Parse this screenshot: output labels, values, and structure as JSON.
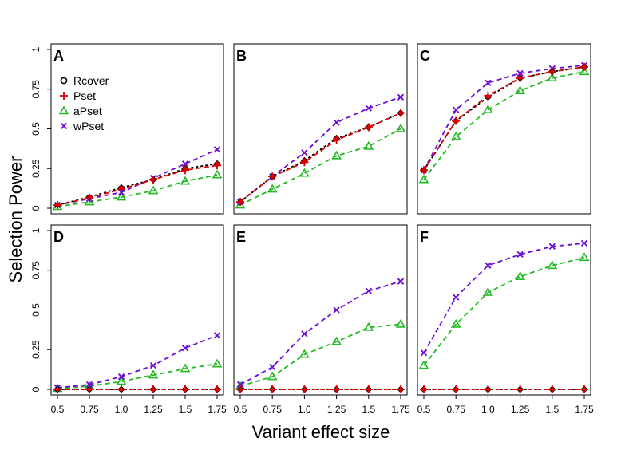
{
  "chart_data": {
    "type": "line",
    "xlabel": "Variant effect size",
    "ylabel": "Selection Power",
    "x": [
      0.5,
      0.75,
      1.0,
      1.25,
      1.5,
      1.75
    ],
    "x_tick_labels": [
      "0.5",
      "0.75",
      "1.0",
      "1.25",
      "1.5",
      "1.75"
    ],
    "ylim": [
      0,
      1
    ],
    "y_ticks": [
      0,
      0.25,
      0.5,
      0.75,
      1
    ],
    "y_tick_labels": [
      "0",
      "0.25",
      "0.5",
      "0.75",
      "1"
    ],
    "grid": false,
    "legend_placement": "top-left of panel A",
    "legend": [
      {
        "name": "Rcover",
        "color": "#000000",
        "marker": "circle"
      },
      {
        "name": "Pset",
        "color": "#dd0000",
        "marker": "plus"
      },
      {
        "name": "aPset",
        "color": "#22bb22",
        "marker": "triangle"
      },
      {
        "name": "wPset",
        "color": "#6a0dd8",
        "marker": "x"
      }
    ],
    "panels": [
      {
        "label": "A",
        "series": [
          {
            "name": "Rcover",
            "values": [
              0.02,
              0.07,
              0.13,
              0.18,
              0.25,
              0.28
            ]
          },
          {
            "name": "Pset",
            "values": [
              0.02,
              0.065,
              0.12,
              0.18,
              0.24,
              0.27
            ]
          },
          {
            "name": "aPset",
            "values": [
              0.01,
              0.04,
              0.07,
              0.11,
              0.17,
              0.21
            ]
          },
          {
            "name": "wPset",
            "values": [
              0.02,
              0.06,
              0.1,
              0.19,
              0.28,
              0.37
            ]
          }
        ]
      },
      {
        "label": "B",
        "series": [
          {
            "name": "Rcover",
            "values": [
              0.04,
              0.2,
              0.3,
              0.44,
              0.51,
              0.6
            ]
          },
          {
            "name": "Pset",
            "values": [
              0.04,
              0.2,
              0.29,
              0.43,
              0.51,
              0.6
            ]
          },
          {
            "name": "aPset",
            "values": [
              0.02,
              0.12,
              0.22,
              0.33,
              0.39,
              0.5
            ]
          },
          {
            "name": "wPset",
            "values": [
              0.04,
              0.2,
              0.35,
              0.54,
              0.63,
              0.7
            ]
          }
        ]
      },
      {
        "label": "C",
        "series": [
          {
            "name": "Rcover",
            "values": [
              0.24,
              0.55,
              0.7,
              0.82,
              0.86,
              0.89
            ]
          },
          {
            "name": "Pset",
            "values": [
              0.24,
              0.55,
              0.71,
              0.82,
              0.86,
              0.89
            ]
          },
          {
            "name": "aPset",
            "values": [
              0.18,
              0.45,
              0.62,
              0.74,
              0.82,
              0.86
            ]
          },
          {
            "name": "wPset",
            "values": [
              0.24,
              0.62,
              0.79,
              0.85,
              0.88,
              0.9
            ]
          }
        ]
      },
      {
        "label": "D",
        "series": [
          {
            "name": "Rcover",
            "values": [
              0.0,
              0.0,
              0.0,
              0.0,
              0.0,
              0.0
            ]
          },
          {
            "name": "Pset",
            "values": [
              0.0,
              0.0,
              0.0,
              0.0,
              0.0,
              0.0
            ]
          },
          {
            "name": "aPset",
            "values": [
              0.005,
              0.02,
              0.05,
              0.09,
              0.13,
              0.16
            ]
          },
          {
            "name": "wPset",
            "values": [
              0.01,
              0.03,
              0.08,
              0.15,
              0.26,
              0.34
            ]
          }
        ]
      },
      {
        "label": "E",
        "series": [
          {
            "name": "Rcover",
            "values": [
              0.0,
              0.0,
              0.0,
              0.0,
              0.0,
              0.0
            ]
          },
          {
            "name": "Pset",
            "values": [
              0.0,
              0.0,
              0.0,
              0.0,
              0.0,
              0.0
            ]
          },
          {
            "name": "aPset",
            "values": [
              0.02,
              0.08,
              0.22,
              0.3,
              0.39,
              0.41
            ]
          },
          {
            "name": "wPset",
            "values": [
              0.03,
              0.14,
              0.35,
              0.5,
              0.62,
              0.68
            ]
          }
        ]
      },
      {
        "label": "F",
        "series": [
          {
            "name": "Rcover",
            "values": [
              0.0,
              0.0,
              0.0,
              0.0,
              0.0,
              0.0
            ]
          },
          {
            "name": "Pset",
            "values": [
              0.0,
              0.0,
              0.0,
              0.0,
              0.0,
              0.0
            ]
          },
          {
            "name": "aPset",
            "values": [
              0.15,
              0.41,
              0.61,
              0.71,
              0.78,
              0.83
            ]
          },
          {
            "name": "wPset",
            "values": [
              0.23,
              0.58,
              0.78,
              0.85,
              0.9,
              0.92
            ]
          }
        ]
      }
    ]
  }
}
